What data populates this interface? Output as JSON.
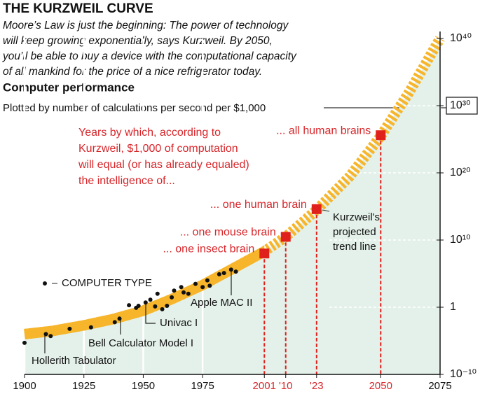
{
  "chart_data": {
    "type": "scatter",
    "title": "THE KURZWEIL CURVE",
    "subtitle": [
      "Moore’s Law is just the beginning: The power of technology",
      "will keep growing exponentially, says Kurzweil. By 2050,",
      "you’ll be able to buy a device with the computational capacity",
      "of all mankind for the price of a nice refrigerator today."
    ],
    "heading": "Computer performance",
    "subheading": "Plotted by number of calculations per second per $1,000",
    "log_y": true,
    "xlim": [
      1900,
      2075
    ],
    "xticks": [
      1900,
      1925,
      1950,
      1975,
      2001,
      {
        "value": 2010,
        "label": "'10"
      },
      {
        "value": 2023,
        "label": "'23"
      },
      2050,
      2075
    ],
    "ylim": [
      1e-10,
      1e+40
    ],
    "yticks": [
      {
        "value": 1e-10,
        "label": "10⁻¹⁰"
      },
      1,
      {
        "value": 10000000000.0,
        "label": "10¹⁰"
      },
      {
        "value": 1e+20,
        "label": "10²⁰"
      },
      {
        "value": 1e+30,
        "label": "10³⁰"
      },
      {
        "value": 1e+40,
        "label": "10⁴⁰"
      }
    ],
    "boxed_ytick": 4,
    "series": [
      {
        "name": "COMPUTER TYPE",
        "color": "#111111",
        "x": [
          1900,
          1909,
          1911,
          1919,
          1928,
          1938,
          1940,
          1944,
          1947,
          1948,
          1951,
          1953,
          1955,
          1956,
          1958,
          1960,
          1962,
          1963,
          1966,
          1967,
          1969,
          1972,
          1975,
          1977,
          1978,
          1982,
          1984,
          1987,
          1989
        ],
        "values": [
          5e-06,
          0.0001,
          5e-05,
          0.0006,
          0.001,
          0.006,
          0.02,
          2,
          0.8,
          1.6,
          5,
          13,
          1.3,
          100,
          0.5,
          1.6,
          30,
          300,
          1000,
          160,
          100,
          3000,
          1000,
          10000,
          1600,
          80000,
          125000,
          400000,
          200000
        ]
      }
    ],
    "trend": {
      "color": "#f6b52b",
      "fill": "#e4f1ea",
      "x": [
        1900,
        1912,
        1925,
        1937,
        1950,
        1962,
        1975,
        1987,
        2001,
        2010,
        2023,
        2037,
        2050,
        2062,
        2075
      ],
      "values": [
        0.0001,
        0.0003,
        0.002,
        0.016,
        0.3,
        16,
        2000,
        400000,
        200000000.0,
        30000000000.0,
        300000000000000.0,
        3e+19,
        3e+25,
        1e+32,
        1e+40
      ],
      "label": [
        "Kurzweil's",
        "projected",
        "trend line"
      ]
    },
    "milestones": {
      "color": "#e0201b",
      "x": [
        2001,
        2010,
        2023,
        2050
      ],
      "values": [
        100000000.0,
        30000000000.0,
        400000000000000.0,
        4e+25
      ],
      "labels": [
        "... one insect brain",
        "... one mouse brain",
        "... one human brain",
        "... all human brains"
      ]
    },
    "milestone_note": [
      "Years by which, according to",
      "Kurzweil, $1,000 of computation",
      "will equal (or has already equaled)",
      "the intelligence of..."
    ],
    "computer_labels": [
      "Hollerith Tabulator",
      "Bell Calculator Model I",
      "Univac I",
      "Apple MAC II"
    ]
  }
}
